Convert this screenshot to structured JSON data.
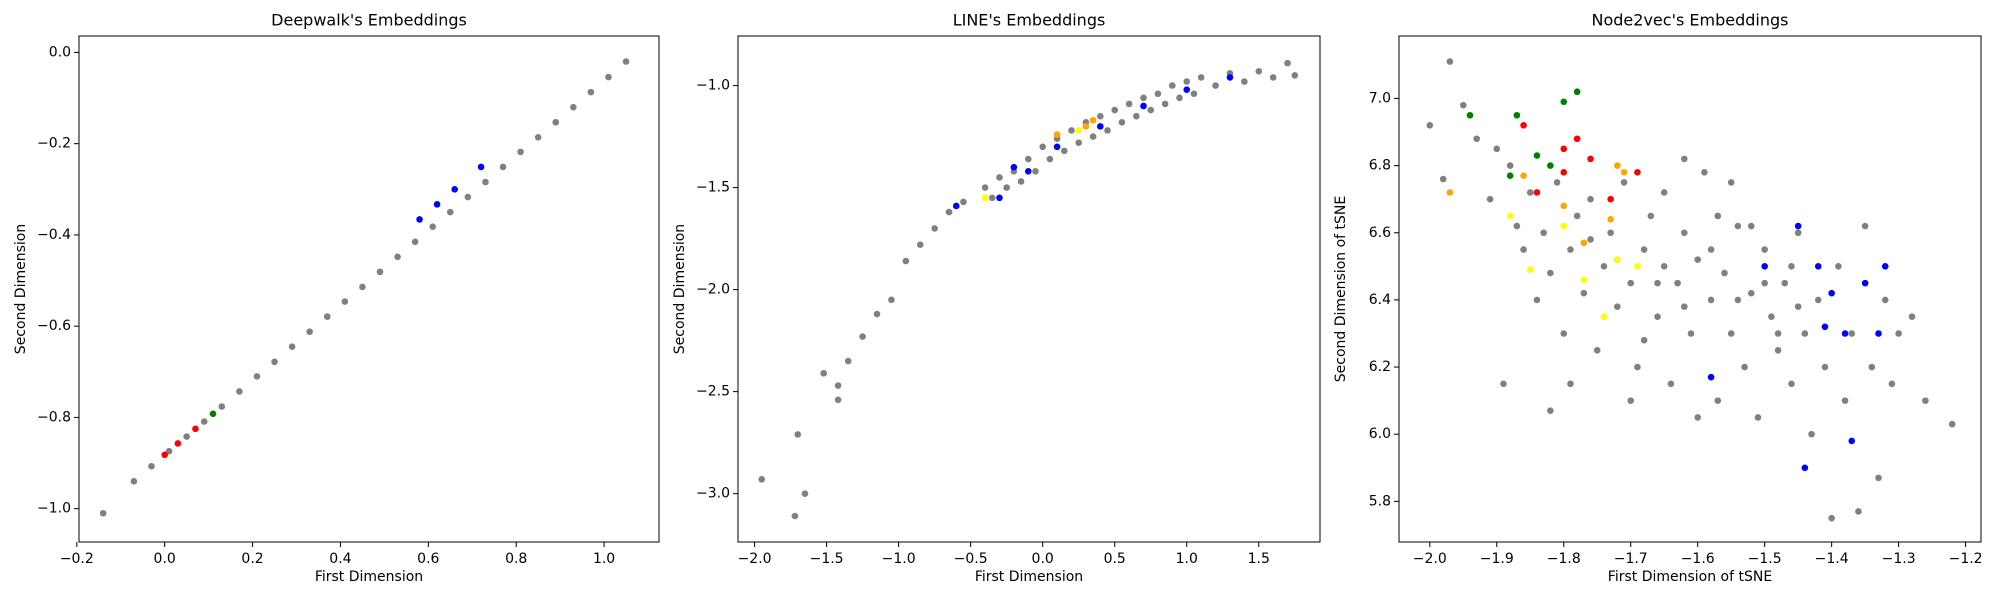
{
  "chart_data": [
    {
      "type": "scatter",
      "title": "Deepwalk's Embeddings",
      "xlabel": "First Dimension",
      "ylabel": "Second Dimension",
      "xlim": [
        -0.195,
        1.125
      ],
      "ylim": [
        -1.073,
        0.036
      ],
      "xticks": [
        {
          "value": -0.2,
          "label": "−0.2"
        },
        {
          "value": 0,
          "label": "0.0"
        },
        {
          "value": 0.2,
          "label": "0.2"
        },
        {
          "value": 0.4,
          "label": "0.4"
        },
        {
          "value": 0.6,
          "label": "0.6"
        },
        {
          "value": 0.8,
          "label": "0.8"
        },
        {
          "value": 1,
          "label": "1.0"
        }
      ],
      "yticks": [
        {
          "value": -1,
          "label": "−1.0"
        },
        {
          "value": -0.8,
          "label": "−0.8"
        },
        {
          "value": -0.6,
          "label": "−0.6"
        },
        {
          "value": -0.4,
          "label": "−0.4"
        },
        {
          "value": -0.2,
          "label": "−0.2"
        },
        {
          "value": 0,
          "label": "0.0"
        }
      ],
      "series": [
        {
          "color": "#808080",
          "x": [
            -0.14,
            -0.07,
            -0.03,
            0.01,
            0.05,
            0.09,
            0.13,
            0.17,
            0.21,
            0.25,
            0.29,
            0.33,
            0.37,
            0.41,
            0.45,
            0.49,
            0.53,
            0.57,
            0.61,
            0.65,
            0.69,
            0.73,
            0.77,
            0.81,
            0.85,
            0.89,
            0.93,
            0.97,
            1.01,
            1.05
          ],
          "values": [
            -1.01,
            -0.94,
            -0.907,
            -0.874,
            -0.842,
            -0.809,
            -0.776,
            -0.743,
            -0.71,
            -0.678,
            -0.645,
            -0.612,
            -0.579,
            -0.546,
            -0.514,
            -0.481,
            -0.448,
            -0.415,
            -0.382,
            -0.35,
            -0.317,
            -0.284,
            -0.251,
            -0.218,
            -0.186,
            -0.153,
            -0.12,
            -0.087,
            -0.054,
            -0.02
          ]
        },
        {
          "color": "#ff0000",
          "x": [
            0.0,
            0.03,
            0.07
          ],
          "values": [
            -0.882,
            -0.857,
            -0.825
          ]
        },
        {
          "color": "#008000",
          "x": [
            0.11
          ],
          "values": [
            -0.792
          ]
        },
        {
          "color": "#0000ff",
          "x": [
            0.58,
            0.62,
            0.66,
            0.72
          ],
          "values": [
            -0.366,
            -0.333,
            -0.3,
            -0.251
          ]
        }
      ]
    },
    {
      "type": "scatter",
      "title": "LINE's Embeddings",
      "xlabel": "First Dimension",
      "ylabel": "Second Dimension",
      "xlim": [
        -2.115,
        1.925
      ],
      "ylim": [
        -3.237,
        -0.757
      ],
      "xticks": [
        {
          "value": -2,
          "label": "−2.0"
        },
        {
          "value": -1.5,
          "label": "−1.5"
        },
        {
          "value": -1,
          "label": "−1.0"
        },
        {
          "value": -0.5,
          "label": "−0.5"
        },
        {
          "value": 0,
          "label": "0.0"
        },
        {
          "value": 0.5,
          "label": "0.5"
        },
        {
          "value": 1,
          "label": "1.0"
        },
        {
          "value": 1.5,
          "label": "1.5"
        }
      ],
      "yticks": [
        {
          "value": -3,
          "label": "−3.0"
        },
        {
          "value": -2.5,
          "label": "−2.5"
        },
        {
          "value": -2,
          "label": "−2.0"
        },
        {
          "value": -1.5,
          "label": "−1.5"
        },
        {
          "value": -1,
          "label": "−1.0"
        }
      ],
      "series": [
        {
          "color": "#808080",
          "x": [
            -1.95,
            -1.72,
            -1.65,
            -1.7,
            -1.52,
            -1.42,
            -1.42,
            -1.35,
            -1.25,
            -1.15,
            -1.05,
            -0.95,
            -0.85,
            -0.75,
            -0.65,
            -0.55,
            -0.4,
            -0.35,
            -0.3,
            -0.25,
            -0.2,
            -0.15,
            -0.1,
            -0.05,
            0,
            0.05,
            0.1,
            0.15,
            0.2,
            0.25,
            0.3,
            0.35,
            0.4,
            0.45,
            0.5,
            0.55,
            0.6,
            0.65,
            0.7,
            0.75,
            0.8,
            0.85,
            0.9,
            0.95,
            1.0,
            1.05,
            1.1,
            1.2,
            1.3,
            1.4,
            1.5,
            1.6,
            1.7,
            1.75
          ],
          "values": [
            -2.93,
            -3.11,
            -3.0,
            -2.71,
            -2.41,
            -2.47,
            -2.54,
            -2.35,
            -2.23,
            -2.12,
            -2.05,
            -1.86,
            -1.78,
            -1.7,
            -1.62,
            -1.57,
            -1.5,
            -1.55,
            -1.45,
            -1.5,
            -1.42,
            -1.47,
            -1.36,
            -1.42,
            -1.3,
            -1.36,
            -1.26,
            -1.32,
            -1.22,
            -1.28,
            -1.18,
            -1.25,
            -1.15,
            -1.22,
            -1.12,
            -1.18,
            -1.09,
            -1.15,
            -1.06,
            -1.12,
            -1.04,
            -1.09,
            -1.0,
            -1.06,
            -0.98,
            -1.04,
            -0.96,
            -1.0,
            -0.94,
            -0.98,
            -0.93,
            -0.96,
            -0.89,
            -0.95
          ]
        },
        {
          "color": "#0000ff",
          "x": [
            -0.6,
            -0.3,
            -0.2,
            -0.1,
            0.1,
            0.4,
            0.7,
            1.0,
            1.3
          ],
          "values": [
            -1.59,
            -1.55,
            -1.4,
            -1.42,
            -1.3,
            -1.2,
            -1.1,
            -1.02,
            -0.96
          ]
        },
        {
          "color": "#ffa500",
          "x": [
            0.1,
            0.3,
            0.35
          ],
          "values": [
            -1.24,
            -1.2,
            -1.17
          ]
        },
        {
          "color": "#ffff00",
          "x": [
            -0.4,
            0.25
          ],
          "values": [
            -1.55,
            -1.22
          ]
        }
      ]
    },
    {
      "type": "scatter",
      "title": "Node2vec's Embeddings",
      "xlabel": "First Dimension of tSNE",
      "ylabel": "Second Dimension of tSNE",
      "xlim": [
        -2.046,
        -1.177
      ],
      "ylim": [
        5.679,
        7.186
      ],
      "xticks": [
        {
          "value": -2,
          "label": "−2.0"
        },
        {
          "value": -1.9,
          "label": "−1.9"
        },
        {
          "value": -1.8,
          "label": "−1.8"
        },
        {
          "value": -1.7,
          "label": "−1.7"
        },
        {
          "value": -1.6,
          "label": "−1.6"
        },
        {
          "value": -1.5,
          "label": "−1.5"
        },
        {
          "value": -1.4,
          "label": "−1.4"
        },
        {
          "value": -1.3,
          "label": "−1.3"
        },
        {
          "value": -1.2,
          "label": "−1.2"
        }
      ],
      "yticks": [
        {
          "value": 5.8,
          "label": "5.8"
        },
        {
          "value": 6,
          "label": "6.0"
        },
        {
          "value": 6.2,
          "label": "6.2"
        },
        {
          "value": 6.4,
          "label": "6.4"
        },
        {
          "value": 6.6,
          "label": "6.6"
        },
        {
          "value": 6.8,
          "label": "6.8"
        },
        {
          "value": 7,
          "label": "7.0"
        }
      ],
      "series": [
        {
          "color": "#808080",
          "x": [
            -2.0,
            -1.98,
            -1.97,
            -1.95,
            -1.93,
            -1.91,
            -1.9,
            -1.88,
            -1.87,
            -1.86,
            -1.85,
            -1.84,
            -1.83,
            -1.82,
            -1.81,
            -1.8,
            -1.79,
            -1.78,
            -1.77,
            -1.76,
            -1.75,
            -1.74,
            -1.73,
            -1.72,
            -1.71,
            -1.7,
            -1.69,
            -1.68,
            -1.67,
            -1.66,
            -1.65,
            -1.64,
            -1.63,
            -1.62,
            -1.61,
            -1.6,
            -1.59,
            -1.58,
            -1.57,
            -1.56,
            -1.55,
            -1.54,
            -1.53,
            -1.52,
            -1.51,
            -1.5,
            -1.49,
            -1.48,
            -1.47,
            -1.46,
            -1.45,
            -1.44,
            -1.43,
            -1.42,
            -1.41,
            -1.4,
            -1.39,
            -1.38,
            -1.37,
            -1.36,
            -1.35,
            -1.34,
            -1.33,
            -1.32,
            -1.31,
            -1.3,
            -1.28,
            -1.26,
            -1.22,
            -1.76,
            -1.62,
            -1.55,
            -1.68,
            -1.58,
            -1.52,
            -1.46,
            -1.6,
            -1.7,
            -1.79,
            -1.89,
            -1.82,
            -1.65,
            -1.57,
            -1.45,
            -1.5,
            -1.62,
            -1.72,
            -1.66,
            -1.54,
            -1.48
          ],
          "values": [
            6.92,
            6.76,
            7.11,
            6.98,
            6.88,
            6.7,
            6.85,
            6.8,
            6.62,
            6.55,
            6.72,
            6.4,
            6.6,
            6.48,
            6.75,
            6.3,
            6.55,
            6.65,
            6.42,
            6.7,
            6.25,
            6.5,
            6.6,
            6.38,
            6.75,
            6.45,
            6.2,
            6.55,
            6.65,
            6.35,
            6.5,
            6.15,
            6.45,
            6.6,
            6.3,
            6.52,
            6.78,
            6.4,
            6.1,
            6.48,
            6.3,
            6.62,
            6.2,
            6.42,
            6.05,
            6.55,
            6.35,
            6.25,
            6.45,
            6.15,
            6.6,
            6.3,
            6.0,
            6.4,
            6.2,
            5.75,
            6.5,
            6.1,
            6.3,
            5.77,
            6.62,
            6.2,
            5.87,
            6.4,
            6.15,
            6.3,
            6.35,
            6.1,
            6.03,
            6.58,
            6.82,
            6.75,
            6.28,
            6.55,
            6.62,
            6.5,
            6.05,
            6.1,
            6.15,
            6.15,
            6.07,
            6.72,
            6.65,
            6.38,
            6.45,
            6.38,
            6.52,
            6.45,
            6.4,
            6.3
          ]
        },
        {
          "color": "#0000ff",
          "x": [
            -1.45,
            -1.42,
            -1.4,
            -1.38,
            -1.35,
            -1.32,
            -1.44,
            -1.37,
            -1.58,
            -1.5,
            -1.41,
            -1.33
          ],
          "values": [
            6.62,
            6.5,
            6.42,
            6.3,
            6.45,
            6.5,
            5.9,
            5.98,
            6.17,
            6.5,
            6.32,
            6.3
          ]
        },
        {
          "color": "#ff0000",
          "x": [
            -1.86,
            -1.8,
            -1.78,
            -1.76,
            -1.8,
            -1.73,
            -1.84,
            -1.69
          ],
          "values": [
            6.92,
            6.85,
            6.88,
            6.82,
            6.78,
            6.7,
            6.72,
            6.78
          ]
        },
        {
          "color": "#008000",
          "x": [
            -1.94,
            -1.8,
            -1.78,
            -1.87,
            -1.84,
            -1.82,
            -1.88
          ],
          "values": [
            6.95,
            6.99,
            7.02,
            6.95,
            6.83,
            6.8,
            6.77
          ]
        },
        {
          "color": "#ffa500",
          "x": [
            -1.97,
            -1.86,
            -1.72,
            -1.71,
            -1.8,
            -1.77,
            -1.73
          ],
          "values": [
            6.72,
            6.77,
            6.8,
            6.78,
            6.68,
            6.57,
            6.64
          ]
        },
        {
          "color": "#ffff00",
          "x": [
            -1.88,
            -1.85,
            -1.8,
            -1.77,
            -1.74,
            -1.72,
            -1.69
          ],
          "values": [
            6.65,
            6.49,
            6.62,
            6.46,
            6.35,
            6.52,
            6.5
          ]
        }
      ]
    }
  ]
}
